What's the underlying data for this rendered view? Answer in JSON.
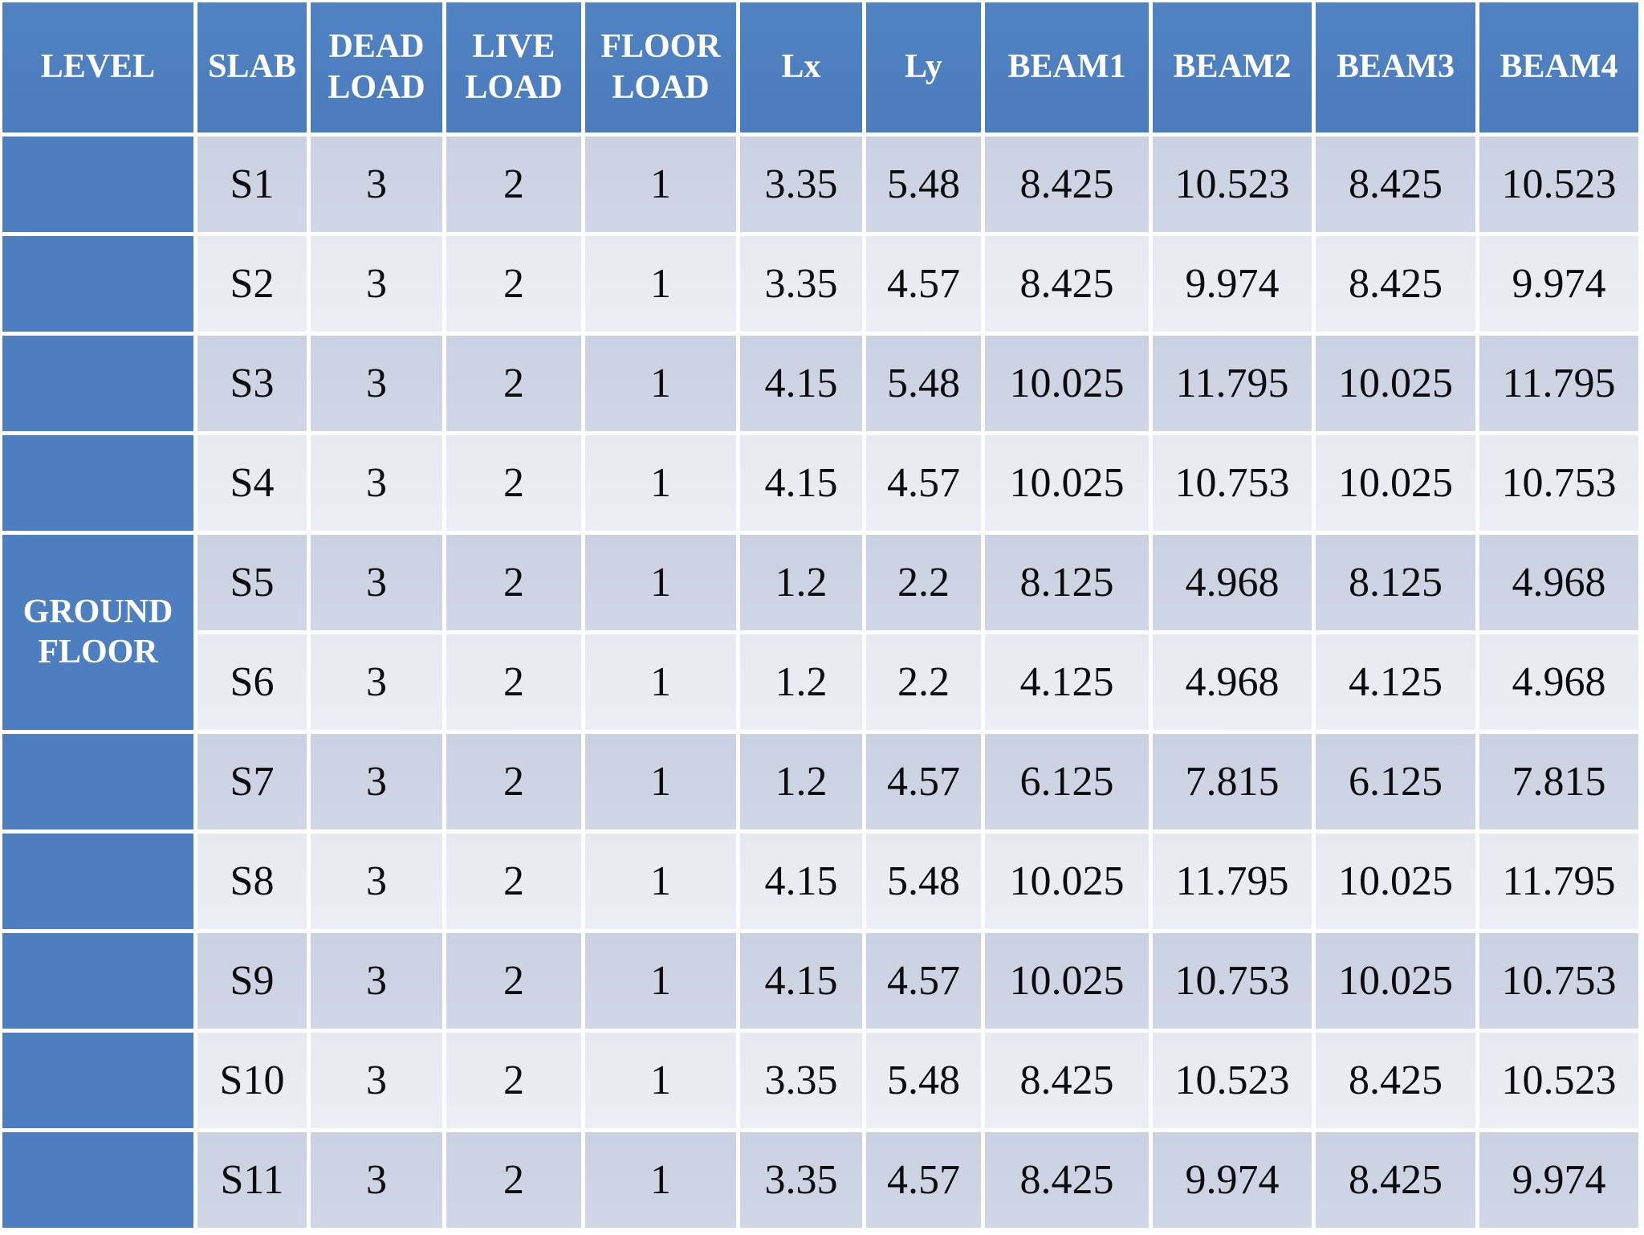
{
  "table": {
    "columns": [
      "LEVEL",
      "SLAB",
      "DEAD LOAD",
      "LIVE LOAD",
      "FLOOR LOAD",
      "Lx",
      "Ly",
      "BEAM1",
      "BEAM2",
      "BEAM3",
      "BEAM4"
    ],
    "level_label": "GROUND FLOOR",
    "level_label_spans_rows": [
      "S5",
      "S6"
    ],
    "rows": [
      [
        "S1",
        "3",
        "2",
        "1",
        "3.35",
        "5.48",
        "8.425",
        "10.523",
        "8.425",
        "10.523"
      ],
      [
        "S2",
        "3",
        "2",
        "1",
        "3.35",
        "4.57",
        "8.425",
        "9.974",
        "8.425",
        "9.974"
      ],
      [
        "S3",
        "3",
        "2",
        "1",
        "4.15",
        "5.48",
        "10.025",
        "11.795",
        "10.025",
        "11.795"
      ],
      [
        "S4",
        "3",
        "2",
        "1",
        "4.15",
        "4.57",
        "10.025",
        "10.753",
        "10.025",
        "10.753"
      ],
      [
        "S5",
        "3",
        "2",
        "1",
        "1.2",
        "2.2",
        "8.125",
        "4.968",
        "8.125",
        "4.968"
      ],
      [
        "S6",
        "3",
        "2",
        "1",
        "1.2",
        "2.2",
        "4.125",
        "4.968",
        "4.125",
        "4.968"
      ],
      [
        "S7",
        "3",
        "2",
        "1",
        "1.2",
        "4.57",
        "6.125",
        "7.815",
        "6.125",
        "7.815"
      ],
      [
        "S8",
        "3",
        "2",
        "1",
        "4.15",
        "5.48",
        "10.025",
        "11.795",
        "10.025",
        "11.795"
      ],
      [
        "S9",
        "3",
        "2",
        "1",
        "4.15",
        "4.57",
        "10.025",
        "10.753",
        "10.025",
        "10.753"
      ],
      [
        "S10",
        "3",
        "2",
        "1",
        "3.35",
        "5.48",
        "8.425",
        "10.523",
        "8.425",
        "10.523"
      ],
      [
        "S11",
        "3",
        "2",
        "1",
        "3.35",
        "4.57",
        "8.425",
        "9.974",
        "8.425",
        "9.974"
      ]
    ]
  },
  "colors": {
    "header_blue": "#4d7fc0",
    "band_dark": "#ccd3e3",
    "band_light": "#e9ebf3",
    "grid_white": "#ffffff",
    "body_text": "#0b0b0e",
    "header_text": "#ffffff"
  }
}
